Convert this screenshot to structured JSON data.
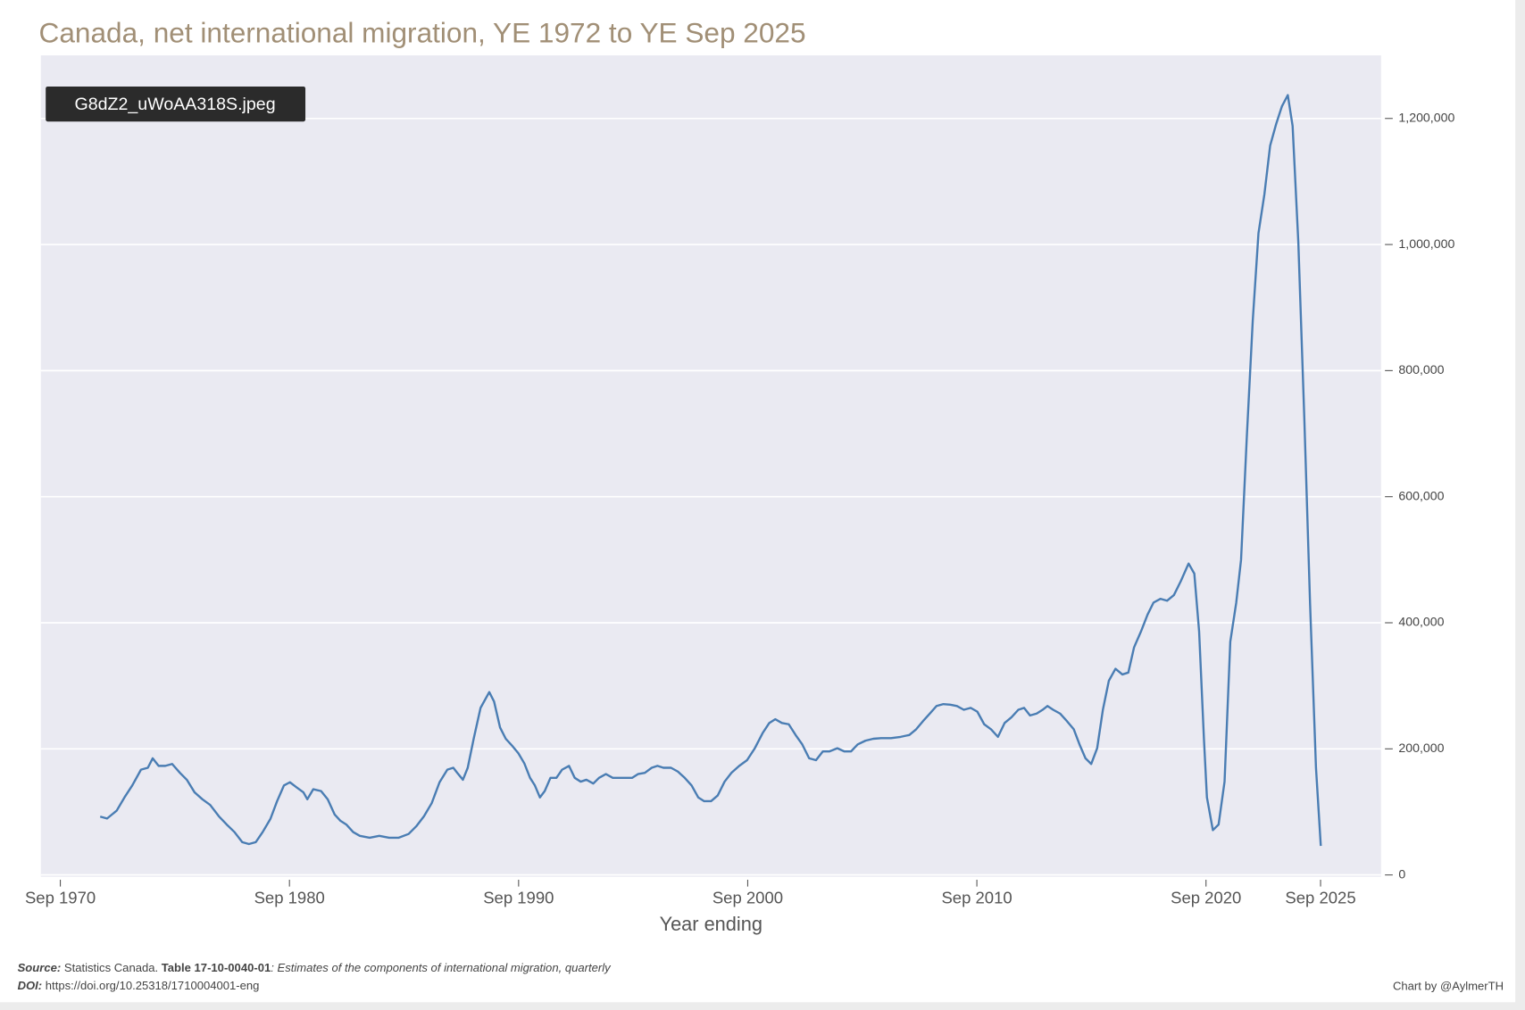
{
  "chart_data": {
    "type": "line",
    "title": "Canada, net international migration, YE 1972 to YE Sep 2025",
    "x_label": "Year ending",
    "color": "#4a7db3",
    "grid": true,
    "xlim": [
      1969.9,
      2028.39
    ],
    "ylim": [
      -3000,
      1300000
    ],
    "xticks": [
      {
        "value": 1970.75,
        "label": "Sep 1970"
      },
      {
        "value": 1980.75,
        "label": "Sep 1980"
      },
      {
        "value": 1990.75,
        "label": "Sep 1990"
      },
      {
        "value": 2000.75,
        "label": "Sep 2000"
      },
      {
        "value": 2010.75,
        "label": "Sep 2010"
      },
      {
        "value": 2020.75,
        "label": "Sep 2020"
      },
      {
        "value": 2025.75,
        "label": "Sep 2025"
      }
    ],
    "yticks": [
      0,
      {
        "value": 200000,
        "label": "200,000"
      },
      {
        "value": 400000,
        "label": "400,000"
      },
      {
        "value": 600000,
        "label": "600,000"
      },
      {
        "value": 800000,
        "label": "800,000"
      },
      {
        "value": 1000000,
        "label": "1,000,000"
      },
      {
        "value": 1200000,
        "label": "1,200,000"
      }
    ],
    "x": [
      1972.49,
      1972.79,
      1973.21,
      1973.55,
      1973.89,
      1974.27,
      1974.57,
      1974.78,
      1975.04,
      1975.33,
      1975.63,
      1975.97,
      1976.27,
      1976.61,
      1976.95,
      1977.29,
      1977.67,
      1978.01,
      1978.35,
      1978.69,
      1978.98,
      1979.28,
      1979.58,
      1979.92,
      1980.21,
      1980.51,
      1980.77,
      1981.06,
      1981.36,
      1981.53,
      1981.79,
      1982.13,
      1982.42,
      1982.72,
      1982.97,
      1983.23,
      1983.53,
      1983.82,
      1984.25,
      1984.67,
      1985.1,
      1985.52,
      1985.95,
      1986.28,
      1986.62,
      1986.96,
      1987.3,
      1987.64,
      1987.9,
      1988.07,
      1988.32,
      1988.53,
      1988.79,
      1989.09,
      1989.47,
      1989.68,
      1989.94,
      1990.19,
      1990.49,
      1990.74,
      1991.0,
      1991.25,
      1991.46,
      1991.68,
      1991.89,
      1992.14,
      1992.4,
      1992.65,
      1992.95,
      1993.2,
      1993.46,
      1993.71,
      1994.01,
      1994.26,
      1994.56,
      1994.86,
      1995.28,
      1995.71,
      1995.96,
      1996.26,
      1996.56,
      1996.81,
      1997.07,
      1997.4,
      1997.7,
      1998.0,
      1998.3,
      1998.59,
      1998.85,
      1999.15,
      1999.44,
      1999.74,
      2000.04,
      2000.38,
      2000.72,
      2001.06,
      2001.4,
      2001.69,
      2001.95,
      2002.24,
      2002.54,
      2002.84,
      2003.13,
      2003.43,
      2003.73,
      2004.03,
      2004.32,
      2004.66,
      2004.96,
      2005.26,
      2005.55,
      2005.89,
      2006.23,
      2006.57,
      2007.0,
      2007.42,
      2007.8,
      2008.1,
      2008.4,
      2008.7,
      2008.99,
      2009.29,
      2009.59,
      2009.88,
      2010.18,
      2010.48,
      2010.77,
      2011.07,
      2011.37,
      2011.67,
      2011.96,
      2012.26,
      2012.56,
      2012.81,
      2013.07,
      2013.36,
      2013.62,
      2013.83,
      2014.08,
      2014.38,
      2014.68,
      2014.98,
      2015.23,
      2015.49,
      2015.74,
      2016.0,
      2016.25,
      2016.51,
      2016.8,
      2017.1,
      2017.36,
      2017.61,
      2017.91,
      2018.2,
      2018.46,
      2018.76,
      2019.05,
      2019.35,
      2019.65,
      2019.99,
      2020.24,
      2020.45,
      2020.66,
      2020.79,
      2021.05,
      2021.3,
      2021.56,
      2021.81,
      2022.07,
      2022.28,
      2022.53,
      2022.79,
      2023.04,
      2023.3,
      2023.55,
      2023.81,
      2024.06,
      2024.32,
      2024.53,
      2024.78,
      2025.04,
      2025.29,
      2025.55,
      2025.76
    ],
    "values": [
      92500,
      89500,
      102000,
      123000,
      142000,
      167000,
      170000,
      185000,
      173000,
      173000,
      176000,
      162000,
      151000,
      131000,
      120000,
      111000,
      93000,
      80000,
      68000,
      52000,
      49000,
      52000,
      68000,
      89000,
      117000,
      142000,
      147000,
      139000,
      131000,
      120000,
      136000,
      133000,
      120000,
      96000,
      86000,
      80000,
      68000,
      62000,
      59000,
      62000,
      59000,
      59000,
      65000,
      77000,
      93000,
      114000,
      147000,
      167000,
      170000,
      162000,
      151000,
      170000,
      216000,
      265000,
      290000,
      275000,
      234000,
      216000,
      204000,
      193000,
      177000,
      154000,
      142000,
      123000,
      133000,
      154000,
      154000,
      167000,
      173000,
      154000,
      148000,
      151000,
      145000,
      154000,
      160000,
      154000,
      154000,
      154000,
      160000,
      162000,
      170000,
      173000,
      170000,
      170000,
      164000,
      154000,
      142000,
      123000,
      117000,
      117000,
      126000,
      148000,
      162000,
      173000,
      182000,
      201000,
      225000,
      241000,
      247000,
      241000,
      239000,
      222000,
      207000,
      185000,
      182000,
      196000,
      196000,
      201000,
      196000,
      196000,
      207000,
      213000,
      216000,
      217000,
      217000,
      219000,
      222000,
      231000,
      244000,
      256000,
      268000,
      271000,
      270000,
      268000,
      262000,
      265000,
      259000,
      239000,
      231000,
      219000,
      241000,
      250000,
      262000,
      265000,
      253000,
      256000,
      262000,
      268000,
      262000,
      256000,
      244000,
      231000,
      207000,
      185000,
      176000,
      201000,
      262000,
      308000,
      327000,
      318000,
      321000,
      361000,
      386000,
      413000,
      432000,
      438000,
      435000,
      444000,
      466000,
      494000,
      478000,
      386000,
      216000,
      123000,
      71000,
      80000,
      148000,
      370000,
      432000,
      500000,
      694000,
      879000,
      1018000,
      1080000,
      1157000,
      1191000,
      1219000,
      1237000,
      1188000,
      1003000,
      725000,
      432000,
      170000,
      46000
    ]
  },
  "overlay_label": "G8dZ2_uWoAA318S.jpeg",
  "footer": {
    "source_label": "Source:",
    "source": " Statistics Canada. ",
    "table_label": "Table 17-10-0040-01",
    "table_desc": ": Estimates of the components of international migration, quarterly",
    "doi_label": "DOI:",
    "doi": " https://doi.org/10.25318/1710004001-eng",
    "credit": "Chart by @AylmerTH"
  }
}
